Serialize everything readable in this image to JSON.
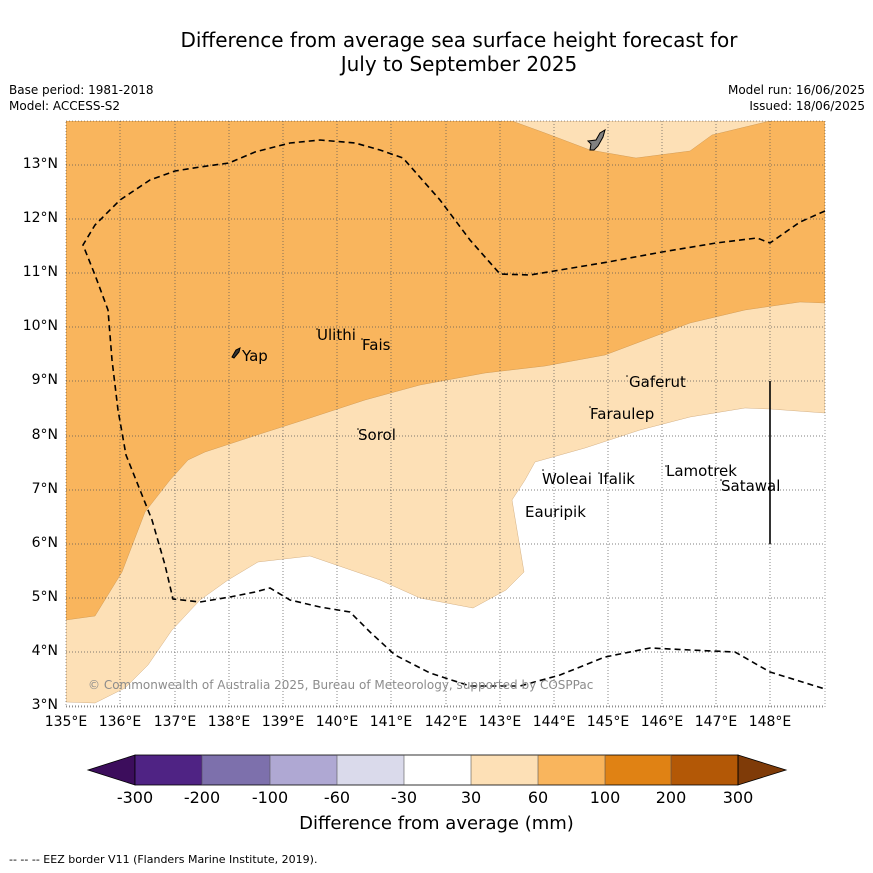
{
  "title_line1": "Difference from average sea surface height forecast for",
  "title_line2": "July to September 2025",
  "base_period": "Base period: 1981-2018",
  "model": "Model: ACCESS-S2",
  "model_run": "Model run: 16/06/2025",
  "issued": "Issued: 18/06/2025",
  "copyright": "© Commonwealth of Australia 2025, Bureau of Meteorology, supported by COSPPac",
  "footnote": "--  --  -- EEZ border V11 (Flanders Marine Institute, 2019).",
  "lat_ticks": [
    "13°N",
    "12°N",
    "11°N",
    "10°N",
    "9°N",
    "8°N",
    "7°N",
    "6°N",
    "5°N",
    "4°N",
    "3°N"
  ],
  "lon_ticks": [
    "135°E",
    "136°E",
    "137°E",
    "138°E",
    "139°E",
    "140°E",
    "141°E",
    "142°E",
    "143°E",
    "144°E",
    "145°E",
    "146°E",
    "147°E",
    "148°E"
  ],
  "places": {
    "yap": "Yap",
    "ulithi": "Ulithi",
    "fais": "Fais",
    "sorol": "Sorol",
    "gaferut": "Gaferut",
    "faraulep": "Faraulep",
    "woleai": "Woleai",
    "ifalik": "Ifalik",
    "lamotrek": "Lamotrek",
    "satawal": "Satawal",
    "eauripik": "Eauripik"
  },
  "colorbar": {
    "title": "Difference from average (mm)",
    "labels": [
      "-300",
      "-200",
      "-100",
      "-60",
      "-30",
      "30",
      "60",
      "100",
      "200",
      "300"
    ],
    "colors": [
      "#3c0d5c",
      "#4f2384",
      "#7d70ac",
      "#afa8d3",
      "#dadaeb",
      "#ffffff",
      "#fde0b6",
      "#f9b55d",
      "#e08214",
      "#b35806",
      "#7f3b08"
    ]
  },
  "map_colors": {
    "band_30_60": "#fde0b6",
    "band_60_100": "#f9b55d",
    "below_30": "#ffffff"
  }
}
